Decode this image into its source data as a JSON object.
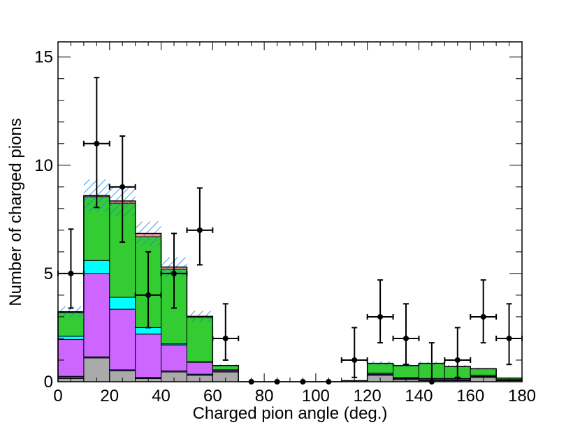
{
  "chart_data": {
    "type": "bar",
    "xlabel": "Charged pion angle (deg.)",
    "ylabel": "Number of charged pions",
    "xlim": [
      0,
      180
    ],
    "ylim": [
      0,
      15.7
    ],
    "x_ticks": [
      0,
      20,
      40,
      60,
      80,
      100,
      120,
      140,
      160,
      180
    ],
    "y_ticks": [
      0,
      5,
      10,
      15
    ],
    "bin_edges": [
      0,
      10,
      20,
      30,
      40,
      50,
      60,
      70,
      80,
      90,
      100,
      110,
      120,
      130,
      140,
      150,
      160,
      170,
      180
    ],
    "stacked_series": [
      {
        "color": "#aaaaaa",
        "values": [
          0.15,
          1.1,
          0.5,
          0.15,
          0.45,
          0.3,
          0.45,
          0,
          0,
          0,
          0,
          0,
          0.3,
          0.1,
          0.05,
          0.05,
          0.2,
          0.05
        ]
      },
      {
        "color": "#3d3dc8",
        "values": [
          0.1,
          0.05,
          0.05,
          0.05,
          0.05,
          0.05,
          0.05,
          0,
          0,
          0,
          0,
          0,
          0.05,
          0.05,
          0.05,
          0.05,
          0.05,
          0.02
        ]
      },
      {
        "color": "#cc66ff",
        "values": [
          1.7,
          3.85,
          2.8,
          2.0,
          1.2,
          0.55,
          0.05,
          0,
          0,
          0,
          0,
          0,
          0.05,
          0.05,
          0.05,
          0.05,
          0.05,
          0.03
        ]
      },
      {
        "color": "#00ffff",
        "values": [
          0.15,
          0.6,
          0.55,
          0.3,
          0.05,
          0.02,
          0.0,
          0,
          0,
          0,
          0,
          0,
          0.0,
          0.0,
          0.0,
          0.0,
          0.0,
          0.0
        ]
      },
      {
        "color": "#33cc33",
        "values": [
          1.1,
          2.95,
          4.35,
          4.2,
          3.45,
          2.05,
          0.2,
          0,
          0,
          0,
          0,
          0.05,
          0.45,
          0.55,
          0.7,
          0.55,
          0.3,
          0.07
        ]
      },
      {
        "color": "#ff9999",
        "values": [
          0.03,
          0.05,
          0.1,
          0.15,
          0.1,
          0.05,
          0.0,
          0,
          0,
          0,
          0,
          0,
          0.0,
          0.0,
          0.0,
          0.0,
          0.0,
          0.0
        ]
      }
    ],
    "uncertainty_halfwidth": [
      0.25,
      0.75,
      0.7,
      0.55,
      0.45,
      0.25,
      0.05,
      0,
      0,
      0,
      0,
      0,
      0.1,
      0.05,
      0.07,
      0.07,
      0.05,
      0.02
    ],
    "data_points": {
      "x": [
        5,
        15,
        25,
        35,
        45,
        55,
        65,
        75,
        85,
        95,
        105,
        115,
        125,
        135,
        145,
        155,
        165,
        175
      ],
      "y": [
        5,
        11,
        9,
        4,
        5,
        7,
        2,
        0,
        0,
        0,
        0,
        1,
        3,
        2,
        0,
        1,
        3,
        2
      ],
      "err_low": [
        1.6,
        2.95,
        2.55,
        1.5,
        1.6,
        1.6,
        1.0,
        0,
        0,
        0,
        0,
        0.8,
        1.2,
        1.2,
        0,
        0.8,
        1.2,
        1.2
      ],
      "err_high": [
        2.05,
        3.05,
        2.35,
        2.0,
        1.85,
        1.95,
        1.6,
        0,
        0,
        0,
        0,
        1.5,
        1.7,
        1.6,
        1.8,
        1.5,
        1.7,
        1.6
      ],
      "x_halfwidth": 5
    }
  }
}
